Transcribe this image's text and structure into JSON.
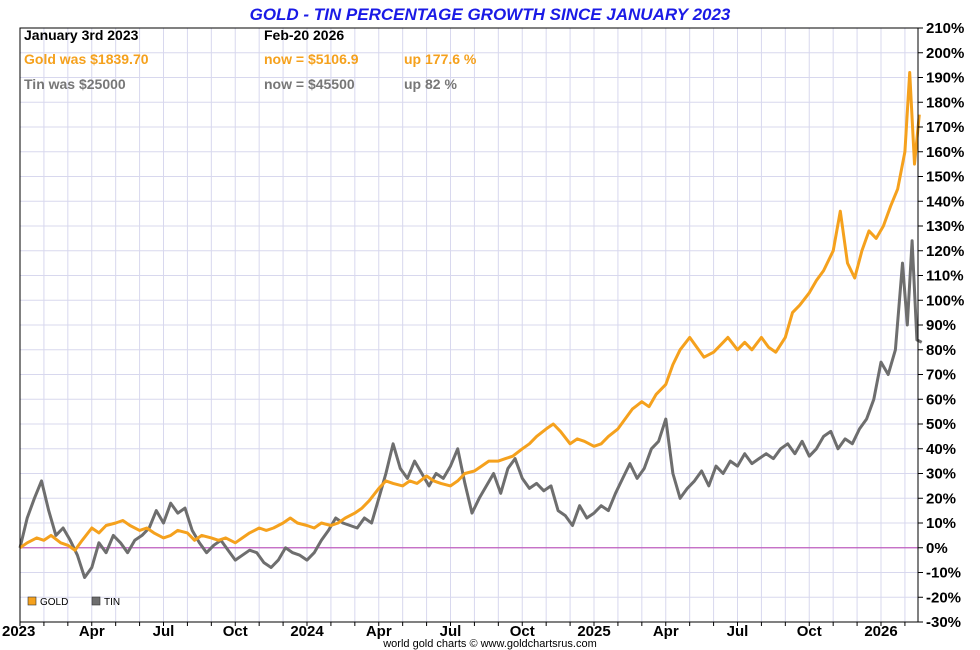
{
  "chart_data": {
    "type": "line",
    "title": "GOLD - TIN PERCENTAGE GROWTH SINCE JANUARY 2023",
    "info": {
      "start_label": "January 3rd 2023",
      "end_label": "Feb-20  2026",
      "gold_was": "Gold was $1839.70",
      "gold_now": "now = $5106.9",
      "gold_up": "up 177.6 %",
      "tin_was": "Tin was $25000",
      "tin_now": "now = $45500",
      "tin_up": "up 82 %"
    },
    "ylim": [
      -30,
      210
    ],
    "y_ticks": [
      "210%",
      "200%",
      "190%",
      "180%",
      "170%",
      "160%",
      "150%",
      "140%",
      "130%",
      "120%",
      "110%",
      "100%",
      "90%",
      "80%",
      "70%",
      "60%",
      "50%",
      "40%",
      "30%",
      "20%",
      "10%",
      "0%",
      "-10%",
      "-20%",
      "-30%"
    ],
    "x_ticks": [
      {
        "label": "2023",
        "m": 0
      },
      {
        "label": "Apr",
        "m": 3
      },
      {
        "label": "Jul",
        "m": 6
      },
      {
        "label": "Oct",
        "m": 9
      },
      {
        "label": "2024",
        "m": 12
      },
      {
        "label": "Apr",
        "m": 15
      },
      {
        "label": "Jul",
        "m": 18
      },
      {
        "label": "Oct",
        "m": 21
      },
      {
        "label": "2025",
        "m": 24
      },
      {
        "label": "Apr",
        "m": 27
      },
      {
        "label": "Jul",
        "m": 30
      },
      {
        "label": "Oct",
        "m": 33
      },
      {
        "label": "2026",
        "m": 36
      }
    ],
    "xlim_months": [
      0,
      37.7
    ],
    "colors": {
      "gold": "#f5a11d",
      "tin": "#6e6e6e",
      "zero_line": "#c060c0",
      "grid": "#d8d8ee"
    },
    "legend": {
      "placement": "bottom-left",
      "items": [
        {
          "name": "GOLD",
          "color": "#f5a11d"
        },
        {
          "name": "TIN",
          "color": "#6e6e6e"
        }
      ]
    },
    "credit": "world gold charts © www.goldchartsrus.com",
    "series": [
      {
        "name": "GOLD",
        "color": "#f5a11d",
        "points": [
          [
            0,
            0
          ],
          [
            0.3,
            2
          ],
          [
            0.7,
            4
          ],
          [
            1,
            3
          ],
          [
            1.3,
            5
          ],
          [
            1.7,
            2
          ],
          [
            2,
            1
          ],
          [
            2.3,
            -1
          ],
          [
            2.6,
            3
          ],
          [
            3,
            8
          ],
          [
            3.3,
            6
          ],
          [
            3.6,
            9
          ],
          [
            4,
            10
          ],
          [
            4.3,
            11
          ],
          [
            4.6,
            9
          ],
          [
            5,
            7
          ],
          [
            5.3,
            8
          ],
          [
            5.6,
            6
          ],
          [
            6,
            4
          ],
          [
            6.3,
            5
          ],
          [
            6.6,
            7
          ],
          [
            7,
            6
          ],
          [
            7.3,
            3
          ],
          [
            7.6,
            5
          ],
          [
            8,
            4
          ],
          [
            8.3,
            3
          ],
          [
            8.6,
            4
          ],
          [
            9,
            2
          ],
          [
            9.3,
            4
          ],
          [
            9.6,
            6
          ],
          [
            10,
            8
          ],
          [
            10.3,
            7
          ],
          [
            10.6,
            8
          ],
          [
            11,
            10
          ],
          [
            11.3,
            12
          ],
          [
            11.6,
            10
          ],
          [
            12,
            9
          ],
          [
            12.3,
            8
          ],
          [
            12.6,
            10
          ],
          [
            13,
            9
          ],
          [
            13.3,
            10
          ],
          [
            13.6,
            12
          ],
          [
            14,
            14
          ],
          [
            14.3,
            16
          ],
          [
            14.6,
            19
          ],
          [
            15,
            24
          ],
          [
            15.3,
            27
          ],
          [
            15.6,
            26
          ],
          [
            16,
            25
          ],
          [
            16.3,
            27
          ],
          [
            16.6,
            26
          ],
          [
            17,
            29
          ],
          [
            17.3,
            27
          ],
          [
            17.6,
            26
          ],
          [
            18,
            25
          ],
          [
            18.3,
            27
          ],
          [
            18.6,
            30
          ],
          [
            19,
            31
          ],
          [
            19.3,
            33
          ],
          [
            19.6,
            35
          ],
          [
            20,
            35
          ],
          [
            20.3,
            36
          ],
          [
            20.6,
            37
          ],
          [
            21,
            40
          ],
          [
            21.3,
            42
          ],
          [
            21.6,
            45
          ],
          [
            22,
            48
          ],
          [
            22.3,
            50
          ],
          [
            22.6,
            47
          ],
          [
            23,
            42
          ],
          [
            23.3,
            44
          ],
          [
            23.6,
            43
          ],
          [
            24,
            41
          ],
          [
            24.3,
            42
          ],
          [
            24.6,
            45
          ],
          [
            25,
            48
          ],
          [
            25.3,
            52
          ],
          [
            25.6,
            56
          ],
          [
            26,
            59
          ],
          [
            26.3,
            57
          ],
          [
            26.6,
            62
          ],
          [
            27,
            66
          ],
          [
            27.3,
            74
          ],
          [
            27.6,
            80
          ],
          [
            28,
            85
          ],
          [
            28.3,
            81
          ],
          [
            28.6,
            77
          ],
          [
            29,
            79
          ],
          [
            29.3,
            82
          ],
          [
            29.6,
            85
          ],
          [
            30,
            80
          ],
          [
            30.3,
            83
          ],
          [
            30.6,
            80
          ],
          [
            31,
            85
          ],
          [
            31.3,
            81
          ],
          [
            31.6,
            79
          ],
          [
            32,
            85
          ],
          [
            32.3,
            95
          ],
          [
            32.6,
            98
          ],
          [
            33,
            103
          ],
          [
            33.3,
            108
          ],
          [
            33.6,
            112
          ],
          [
            34,
            120
          ],
          [
            34.3,
            136
          ],
          [
            34.6,
            115
          ],
          [
            34.9,
            109
          ],
          [
            35.2,
            120
          ],
          [
            35.5,
            128
          ],
          [
            35.8,
            125
          ],
          [
            36.1,
            130
          ],
          [
            36.4,
            138
          ],
          [
            36.7,
            145
          ],
          [
            37,
            160
          ],
          [
            37.2,
            192
          ],
          [
            37.4,
            155
          ],
          [
            37.6,
            175
          ]
        ]
      },
      {
        "name": "TIN",
        "color": "#6e6e6e",
        "points": [
          [
            0,
            0
          ],
          [
            0.3,
            12
          ],
          [
            0.6,
            20
          ],
          [
            0.9,
            27
          ],
          [
            1.2,
            15
          ],
          [
            1.5,
            5
          ],
          [
            1.8,
            8
          ],
          [
            2.1,
            3
          ],
          [
            2.4,
            -3
          ],
          [
            2.7,
            -12
          ],
          [
            3,
            -8
          ],
          [
            3.3,
            2
          ],
          [
            3.6,
            -2
          ],
          [
            3.9,
            5
          ],
          [
            4.2,
            2
          ],
          [
            4.5,
            -2
          ],
          [
            4.8,
            3
          ],
          [
            5.1,
            5
          ],
          [
            5.4,
            8
          ],
          [
            5.7,
            15
          ],
          [
            6,
            10
          ],
          [
            6.3,
            18
          ],
          [
            6.6,
            14
          ],
          [
            6.9,
            16
          ],
          [
            7.2,
            7
          ],
          [
            7.5,
            2
          ],
          [
            7.8,
            -2
          ],
          [
            8.1,
            1
          ],
          [
            8.4,
            3
          ],
          [
            8.7,
            -1
          ],
          [
            9,
            -5
          ],
          [
            9.3,
            -3
          ],
          [
            9.6,
            -1
          ],
          [
            9.9,
            -2
          ],
          [
            10.2,
            -6
          ],
          [
            10.5,
            -8
          ],
          [
            10.8,
            -5
          ],
          [
            11.1,
            0
          ],
          [
            11.4,
            -2
          ],
          [
            11.7,
            -3
          ],
          [
            12,
            -5
          ],
          [
            12.3,
            -2
          ],
          [
            12.6,
            3
          ],
          [
            12.9,
            7
          ],
          [
            13.2,
            12
          ],
          [
            13.5,
            10
          ],
          [
            13.8,
            9
          ],
          [
            14.1,
            8
          ],
          [
            14.4,
            12
          ],
          [
            14.7,
            10
          ],
          [
            15,
            20
          ],
          [
            15.3,
            30
          ],
          [
            15.6,
            42
          ],
          [
            15.9,
            32
          ],
          [
            16.2,
            28
          ],
          [
            16.5,
            35
          ],
          [
            16.8,
            30
          ],
          [
            17.1,
            25
          ],
          [
            17.4,
            30
          ],
          [
            17.7,
            28
          ],
          [
            18,
            33
          ],
          [
            18.3,
            40
          ],
          [
            18.6,
            26
          ],
          [
            18.9,
            14
          ],
          [
            19.2,
            20
          ],
          [
            19.5,
            25
          ],
          [
            19.8,
            30
          ],
          [
            20.1,
            22
          ],
          [
            20.4,
            32
          ],
          [
            20.7,
            36
          ],
          [
            21,
            28
          ],
          [
            21.3,
            24
          ],
          [
            21.6,
            26
          ],
          [
            21.9,
            23
          ],
          [
            22.2,
            25
          ],
          [
            22.5,
            15
          ],
          [
            22.8,
            13
          ],
          [
            23.1,
            9
          ],
          [
            23.4,
            17
          ],
          [
            23.7,
            12
          ],
          [
            24,
            14
          ],
          [
            24.3,
            17
          ],
          [
            24.6,
            15
          ],
          [
            24.9,
            22
          ],
          [
            25.2,
            28
          ],
          [
            25.5,
            34
          ],
          [
            25.8,
            28
          ],
          [
            26.1,
            32
          ],
          [
            26.4,
            40
          ],
          [
            26.7,
            43
          ],
          [
            27,
            52
          ],
          [
            27.3,
            30
          ],
          [
            27.6,
            20
          ],
          [
            27.9,
            24
          ],
          [
            28.2,
            27
          ],
          [
            28.5,
            31
          ],
          [
            28.8,
            25
          ],
          [
            29.1,
            33
          ],
          [
            29.4,
            30
          ],
          [
            29.7,
            35
          ],
          [
            30,
            33
          ],
          [
            30.3,
            38
          ],
          [
            30.6,
            34
          ],
          [
            30.9,
            36
          ],
          [
            31.2,
            38
          ],
          [
            31.5,
            36
          ],
          [
            31.8,
            40
          ],
          [
            32.1,
            42
          ],
          [
            32.4,
            38
          ],
          [
            32.7,
            43
          ],
          [
            33,
            37
          ],
          [
            33.3,
            40
          ],
          [
            33.6,
            45
          ],
          [
            33.9,
            47
          ],
          [
            34.2,
            40
          ],
          [
            34.5,
            44
          ],
          [
            34.8,
            42
          ],
          [
            35.1,
            48
          ],
          [
            35.4,
            52
          ],
          [
            35.7,
            60
          ],
          [
            36,
            75
          ],
          [
            36.3,
            70
          ],
          [
            36.6,
            80
          ],
          [
            36.9,
            115
          ],
          [
            37.1,
            90
          ],
          [
            37.3,
            124
          ],
          [
            37.5,
            84
          ],
          [
            37.7,
            83
          ]
        ]
      }
    ]
  }
}
